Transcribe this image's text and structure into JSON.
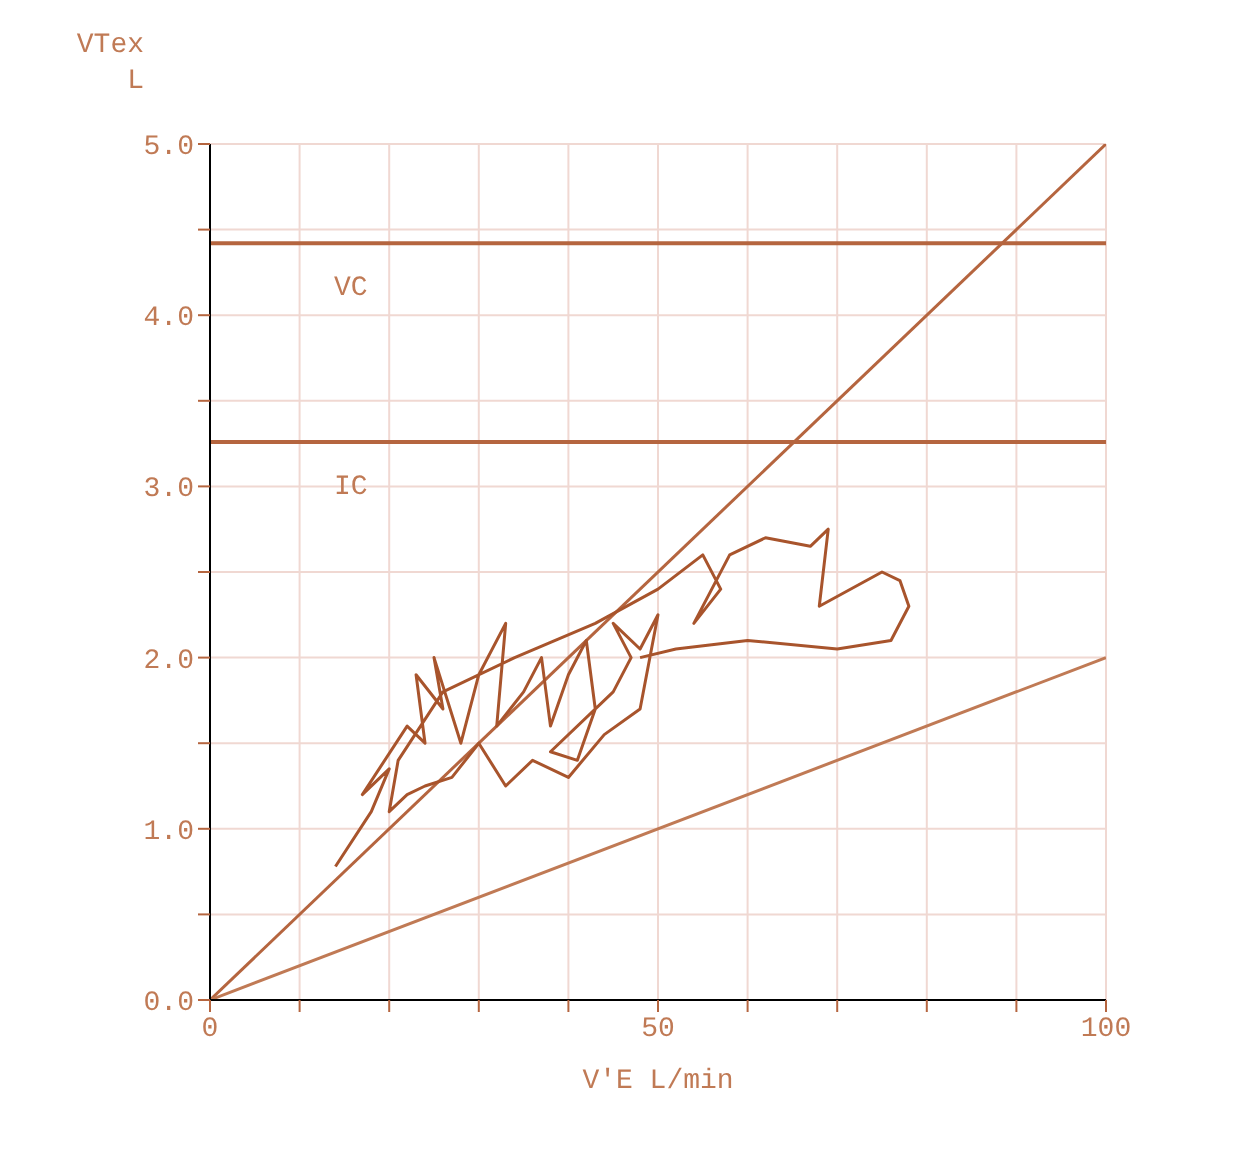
{
  "chart_data": {
    "type": "line",
    "xlabel": "V'E  L/min",
    "ylabel": "VTex L",
    "xlim": [
      0,
      100
    ],
    "ylim": [
      0,
      5
    ],
    "xticks": [
      0,
      {
        "value": 10,
        "label": null
      },
      {
        "value": 20,
        "label": null
      },
      {
        "value": 30,
        "label": null
      },
      {
        "value": 40,
        "label": null
      },
      50,
      {
        "value": 60,
        "label": null
      },
      {
        "value": 70,
        "label": null
      },
      {
        "value": 80,
        "label": null
      },
      {
        "value": 90,
        "label": null
      },
      100
    ],
    "yticks": [
      {
        "value": 0,
        "label": "0.0"
      },
      {
        "value": 0.5,
        "label": null
      },
      {
        "value": 1,
        "label": "1.0"
      },
      {
        "value": 1.5,
        "label": null
      },
      {
        "value": 2,
        "label": "2.0"
      },
      {
        "value": 2.5,
        "label": null
      },
      {
        "value": 3,
        "label": "3.0"
      },
      {
        "value": 3.5,
        "label": null
      },
      {
        "value": 4,
        "label": "4.0"
      },
      {
        "value": 4.5,
        "label": null
      },
      {
        "value": 5,
        "label": "5.0"
      }
    ],
    "grid": true,
    "marker": "none",
    "line_style": "solid",
    "ref_lines": [
      {
        "axis": "y",
        "value": 4.42,
        "label": "VC",
        "color": "#b5653f"
      },
      {
        "axis": "y",
        "value": 3.26,
        "label": "IC",
        "color": "#b5653f"
      }
    ],
    "series": [
      {
        "color": "#b5653f",
        "x": [
          0,
          100
        ],
        "values": [
          0,
          5
        ]
      },
      {
        "color": "#c07a55",
        "x": [
          0,
          100
        ],
        "values": [
          0,
          2
        ]
      },
      {
        "color": "#a8542c",
        "x": [
          14,
          18,
          20,
          17,
          22,
          24,
          23,
          26,
          25,
          28,
          30,
          33,
          32,
          35,
          37,
          38,
          40,
          42,
          43,
          41,
          38,
          45,
          47,
          45,
          48,
          50,
          48,
          44,
          40,
          36,
          33,
          30,
          27,
          24,
          22,
          20,
          21,
          26,
          34,
          43,
          50,
          55,
          57,
          54,
          58,
          62,
          67,
          69,
          68,
          75,
          77,
          78,
          76,
          70,
          60,
          52,
          48
        ],
        "values": [
          0.78,
          1.1,
          1.35,
          1.2,
          1.6,
          1.5,
          1.9,
          1.7,
          2.0,
          1.5,
          1.9,
          2.2,
          1.6,
          1.8,
          2.0,
          1.6,
          1.9,
          2.1,
          1.7,
          1.4,
          1.45,
          1.8,
          2.0,
          2.2,
          2.05,
          2.25,
          1.7,
          1.55,
          1.3,
          1.4,
          1.25,
          1.5,
          1.3,
          1.25,
          1.2,
          1.1,
          1.4,
          1.8,
          2.0,
          2.2,
          2.4,
          2.6,
          2.4,
          2.2,
          2.6,
          2.7,
          2.65,
          2.75,
          2.3,
          2.5,
          2.45,
          2.3,
          2.1,
          2.05,
          2.1,
          2.05,
          2.0
        ]
      }
    ]
  }
}
